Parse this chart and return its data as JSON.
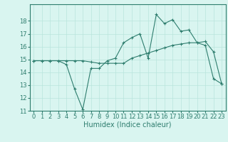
{
  "title": "",
  "xlabel": "Humidex (Indice chaleur)",
  "x_values": [
    0,
    1,
    2,
    3,
    4,
    5,
    6,
    7,
    8,
    9,
    10,
    11,
    12,
    13,
    14,
    15,
    16,
    17,
    18,
    19,
    20,
    21,
    22,
    23
  ],
  "line1": [
    14.9,
    14.9,
    14.9,
    14.9,
    14.6,
    12.7,
    11.1,
    14.3,
    14.3,
    14.9,
    15.1,
    16.3,
    16.7,
    17.0,
    15.1,
    18.5,
    17.8,
    18.1,
    17.2,
    17.3,
    16.3,
    16.4,
    15.6,
    13.1
  ],
  "line2": [
    14.9,
    14.9,
    14.9,
    14.9,
    14.9,
    14.9,
    14.9,
    14.8,
    14.7,
    14.7,
    14.7,
    14.7,
    15.1,
    15.3,
    15.5,
    15.7,
    15.9,
    16.1,
    16.2,
    16.3,
    16.3,
    16.1,
    13.5,
    13.1
  ],
  "line_color": "#2e7d6e",
  "bg_color": "#d9f5f0",
  "grid_color": "#b8e4dc",
  "ylim": [
    11,
    19
  ],
  "xlim": [
    -0.5,
    23.5
  ],
  "yticks": [
    11,
    12,
    13,
    14,
    15,
    16,
    17,
    18
  ],
  "xticks": [
    0,
    1,
    2,
    3,
    4,
    5,
    6,
    7,
    8,
    9,
    10,
    11,
    12,
    13,
    14,
    15,
    16,
    17,
    18,
    19,
    20,
    21,
    22,
    23
  ],
  "tick_fontsize": 6,
  "xlabel_fontsize": 7
}
